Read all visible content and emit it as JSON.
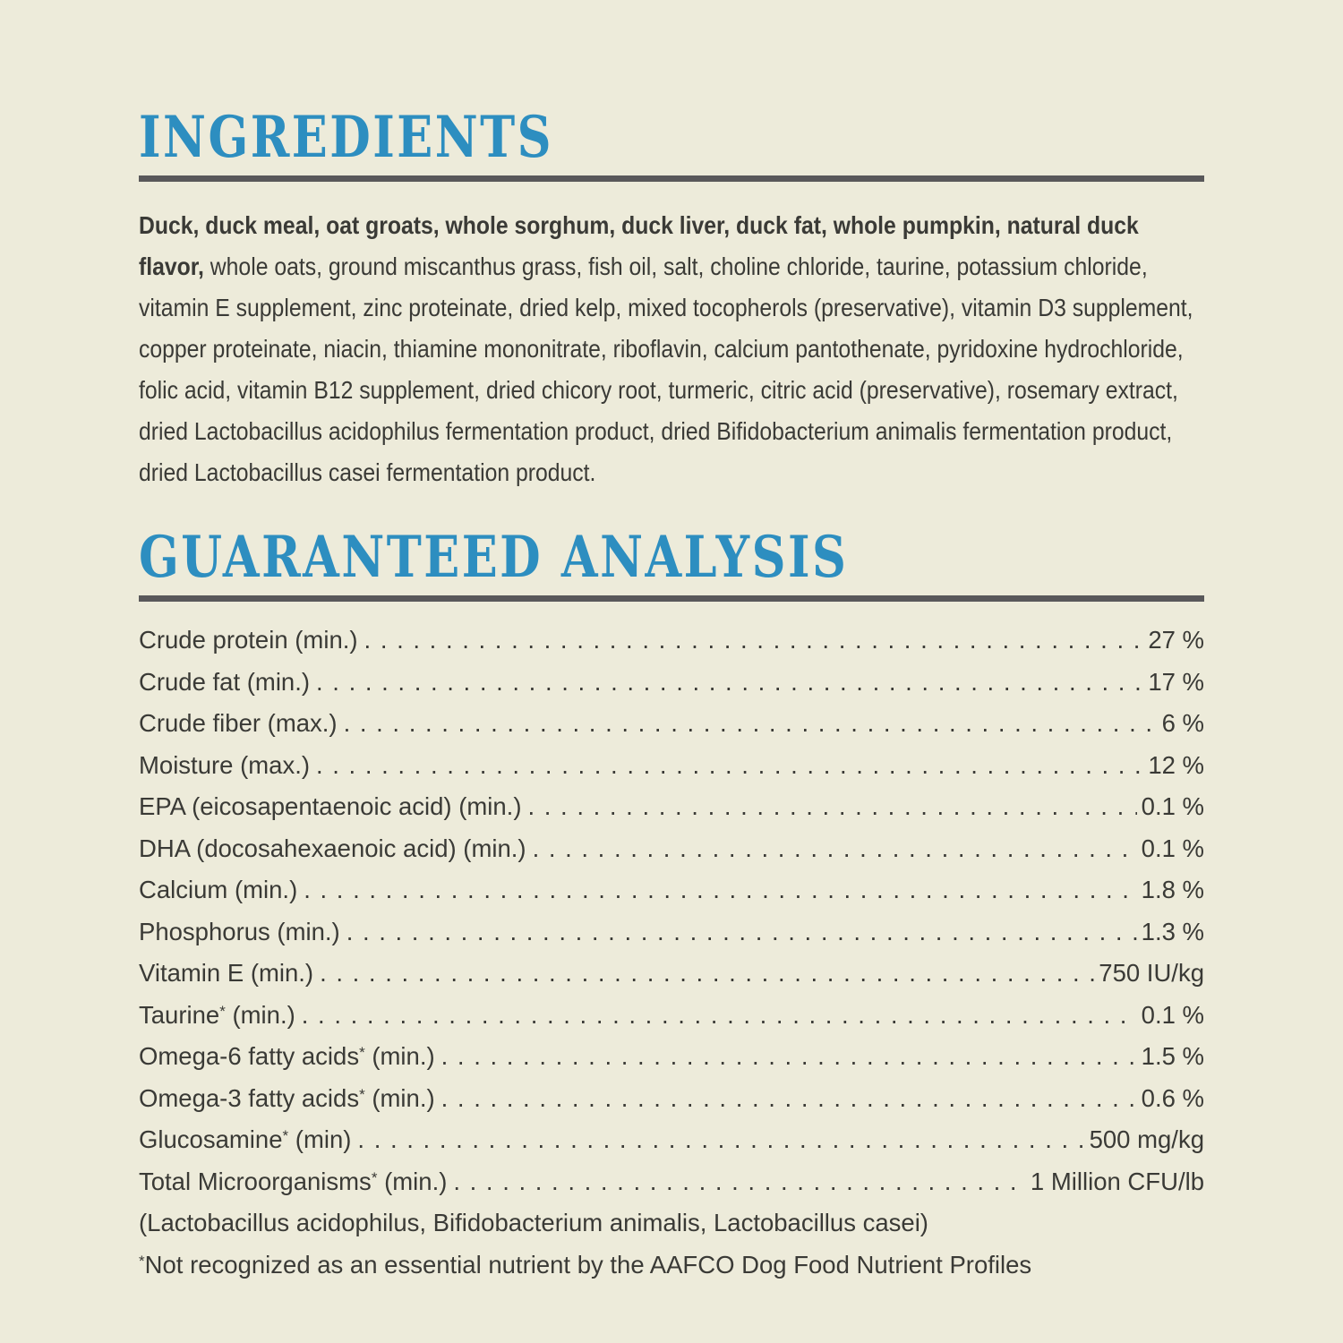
{
  "colors": {
    "background": "#edebda",
    "heading_blue": "#2d8ec0",
    "rule_gray": "#59585a",
    "body_text": "#3a3a36"
  },
  "ingredients": {
    "title": "INGREDIENTS",
    "primary": "Duck, duck meal, oat groats, whole sorghum, duck liver, duck fat, whole pumpkin, natural duck flavor,",
    "rest": "whole oats, ground miscanthus grass, fish oil, salt, choline chloride, taurine, potassium chloride, vitamin E supplement, zinc proteinate, dried kelp, mixed tocopherols (preservative), vitamin D3 supplement, copper proteinate, niacin, thiamine mononitrate, riboflavin, calcium pantothenate, pyridoxine hydrochloride, folic acid, vitamin B12 supplement, dried chicory root, turmeric, citric acid (preservative), rosemary extract, dried Lactobacillus acidophilus fermentation product, dried Bifidobacterium animalis fermentation product, dried Lactobacillus casei fermentation product."
  },
  "guaranteed_analysis": {
    "title": "GUARANTEED ANALYSIS",
    "rows": [
      {
        "label": "Crude protein (min.)",
        "ast": "",
        "suffix": "",
        "value": "27 %"
      },
      {
        "label": "Crude fat (min.)",
        "ast": "",
        "suffix": "",
        "value": "17 %"
      },
      {
        "label": "Crude fiber (max.)",
        "ast": "",
        "suffix": "",
        "value": "6 %"
      },
      {
        "label": "Moisture (max.)",
        "ast": "",
        "suffix": "",
        "value": "12 %"
      },
      {
        "label": "EPA (eicosapentaenoic acid) (min.)",
        "ast": "",
        "suffix": "",
        "value": "0.1 %"
      },
      {
        "label": "DHA (docosahexaenoic acid) (min.)",
        "ast": "",
        "suffix": "",
        "value": "0.1 %"
      },
      {
        "label": "Calcium (min.)",
        "ast": "",
        "suffix": "",
        "value": "1.8 %"
      },
      {
        "label": "Phosphorus (min.)",
        "ast": "",
        "suffix": "",
        "value": "1.3 %"
      },
      {
        "label": "Vitamin E (min.)",
        "ast": "",
        "suffix": "",
        "value": "750 IU/kg"
      },
      {
        "label": "Taurine",
        "ast": "*",
        "suffix": " (min.)",
        "value": "0.1 %"
      },
      {
        "label": "Omega-6 fatty acids",
        "ast": "*",
        "suffix": " (min.)",
        "value": "1.5 %"
      },
      {
        "label": "Omega-3 fatty acids",
        "ast": "*",
        "suffix": " (min.)",
        "value": "0.6 %"
      },
      {
        "label": "Glucosamine",
        "ast": "*",
        "suffix": " (min)",
        "value": "500 mg/kg"
      },
      {
        "label": "Total Microorganisms",
        "ast": "*",
        "suffix": " (min.)",
        "value": "1 Million CFU/lb"
      }
    ],
    "organisms_note": "(Lactobacillus acidophilus, Bifidobacterium animalis, Lactobacillus casei)",
    "footnote_ast": "*",
    "footnote": "Not recognized as an essential nutrient by the AAFCO Dog Food Nutrient Profiles"
  }
}
